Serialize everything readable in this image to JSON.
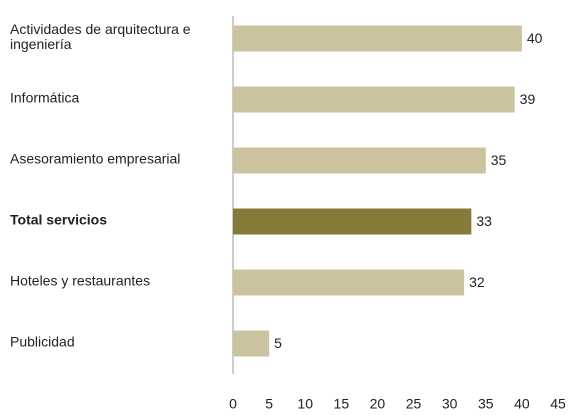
{
  "chart_data": {
    "type": "barh",
    "categories": [
      "Actividades de arquitectura e ingeniería",
      "Informática",
      "Asesoramiento empresarial",
      "Total servicios",
      "Hoteles y restaurantes",
      "Publicidad"
    ],
    "values": [
      40,
      39,
      35,
      33,
      32,
      5
    ],
    "colors": [
      "#cbc3a0",
      "#cbc3a0",
      "#cbc3a0",
      "#857a3a",
      "#cbc3a0",
      "#cbc3a0"
    ],
    "xlim": [
      0,
      45
    ],
    "xticks": [
      0,
      5,
      10,
      15,
      20,
      25,
      30,
      35,
      40,
      45
    ],
    "grid": false
  }
}
